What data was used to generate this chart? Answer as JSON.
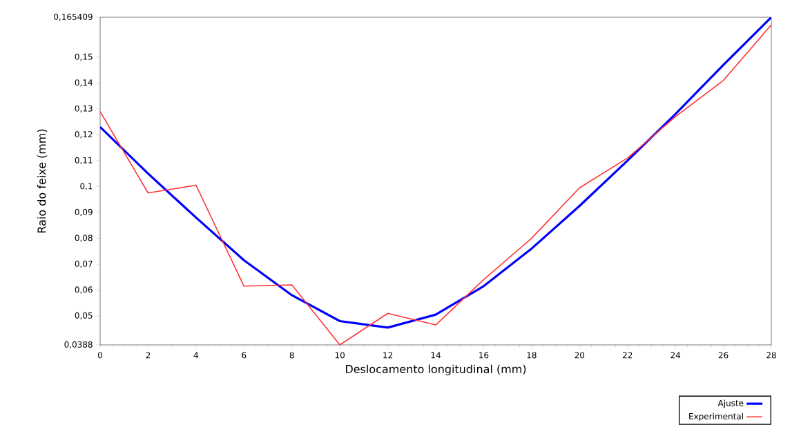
{
  "chart_data": {
    "type": "line",
    "xlabel": "Deslocamento longitudinal (mm)",
    "ylabel": "Raio do feixe (mm)",
    "x": [
      0,
      2,
      4,
      6,
      8,
      10,
      12,
      14,
      16,
      18,
      20,
      22,
      24,
      26,
      28
    ],
    "series": [
      {
        "name": "Ajuste",
        "color": "#0000ff",
        "values": [
          0.123,
          0.105,
          0.088,
          0.0715,
          0.058,
          0.048,
          0.0455,
          0.0505,
          0.0615,
          0.076,
          0.0925,
          0.11,
          0.128,
          0.147,
          0.1654
        ]
      },
      {
        "name": "Experimental",
        "color": "#ff3333",
        "values": [
          0.129,
          0.0975,
          0.1005,
          0.0615,
          0.062,
          0.0388,
          0.051,
          0.0465,
          0.064,
          0.08,
          0.0995,
          0.111,
          0.127,
          0.141,
          0.1625
        ]
      }
    ],
    "xlim": [
      0,
      28
    ],
    "ylim": [
      0.0388,
      0.165409
    ],
    "xticks": [
      0,
      2,
      4,
      6,
      8,
      10,
      12,
      14,
      16,
      18,
      20,
      22,
      24,
      26,
      28
    ],
    "yticks": [
      {
        "value": 0.0388,
        "label": "0,0388"
      },
      {
        "value": 0.05,
        "label": "0,05"
      },
      {
        "value": 0.06,
        "label": "0,06"
      },
      {
        "value": 0.07,
        "label": "0,07"
      },
      {
        "value": 0.08,
        "label": "0,08"
      },
      {
        "value": 0.09,
        "label": "0,09"
      },
      {
        "value": 0.1,
        "label": "0,1"
      },
      {
        "value": 0.11,
        "label": "0,11"
      },
      {
        "value": 0.12,
        "label": "0,12"
      },
      {
        "value": 0.13,
        "label": "0,13"
      },
      {
        "value": 0.14,
        "label": "0,14"
      },
      {
        "value": 0.15,
        "label": "0,15"
      },
      {
        "value": 0.165409,
        "label": "0,165409"
      }
    ],
    "grid": false,
    "legend": "bottom right",
    "marker": "none",
    "line_style": "solid"
  }
}
